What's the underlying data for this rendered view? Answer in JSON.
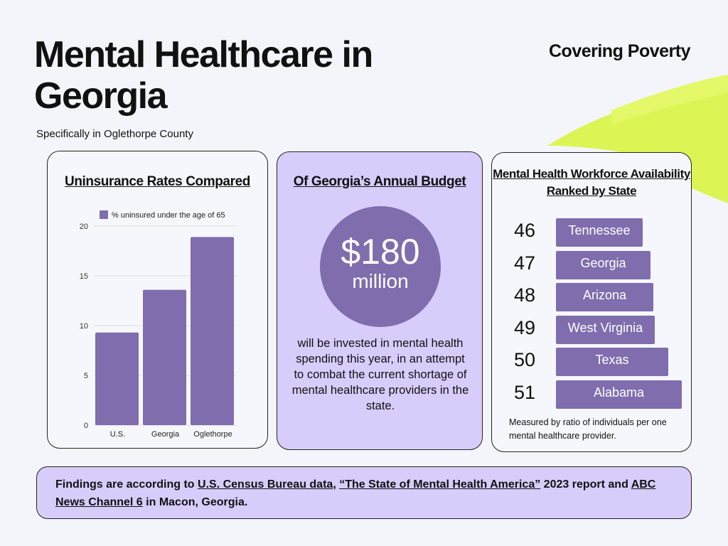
{
  "header": {
    "title": "Mental Healthcare in Georgia",
    "subtitle": "Specifically in Oglethorpe County",
    "brand": "Covering Poverty"
  },
  "card1": {
    "heading": "Uninsurance Rates Compared"
  },
  "chart_data": {
    "type": "bar",
    "title": "Uninsurance Rates Compared",
    "categories": [
      "U.S.",
      "Georgia",
      "Oglethorpe"
    ],
    "series": [
      {
        "name": "% uninsured under the age of 65",
        "values": [
          9.3,
          13.6,
          18.9
        ]
      }
    ],
    "ylim": [
      0,
      20
    ],
    "yticks": [
      0,
      5,
      10,
      15,
      20
    ],
    "grid": true,
    "legend": "top",
    "color": "#7f6dae"
  },
  "card2": {
    "heading": "Of Georgia’s Annual Budget",
    "amount": "$180",
    "unit": "million",
    "body": "will be invested in mental health spending this year, in an attempt to combat the current shortage of mental healthcare providers in the state."
  },
  "card3": {
    "heading": "Mental Health Workforce Availability Ranked by State",
    "ranks": [
      {
        "rank": "46",
        "state": "Tennessee"
      },
      {
        "rank": "47",
        "state": "Georgia"
      },
      {
        "rank": "48",
        "state": "Arizona"
      },
      {
        "rank": "49",
        "state": "West Virginia"
      },
      {
        "rank": "50",
        "state": "Texas"
      },
      {
        "rank": "51",
        "state": "Alabama"
      }
    ],
    "note": "Measured by ratio of individuals per one mental healthcare provider."
  },
  "footer": {
    "t1": "Findings are according to ",
    "l1": "U.S. Census Bureau data",
    "t2": ", ",
    "l2": "“The State of Mental Health America”",
    "t3": " 2023 report and ",
    "l3": "ABC News Channel 6",
    "t4": " in Macon, Georgia."
  }
}
